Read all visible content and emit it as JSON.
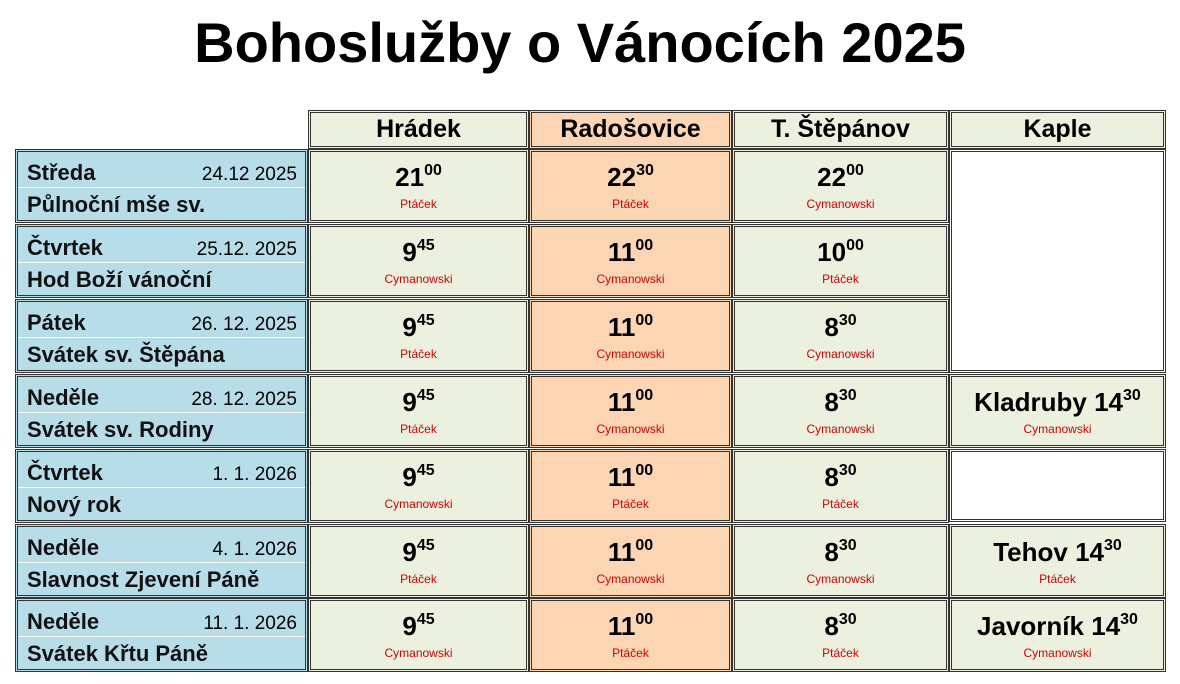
{
  "title": "Bohoslužby o Vánocích 2025",
  "header": [
    "Hrádek",
    "Radošovice",
    "T. Štěpánov",
    "Kaple"
  ],
  "rows": [
    {
      "day": "Středa",
      "date": "24.12 2025",
      "feast": "Půlnoční mše sv.",
      "times": [
        {
          "hour": "21",
          "minute": "00",
          "priest": "Ptáček"
        },
        {
          "hour": "22",
          "minute": "30",
          "priest": "Ptáček"
        },
        {
          "hour": "22",
          "minute": "00",
          "priest": "Cymanowski"
        }
      ]
    },
    {
      "day": "Čtvrtek",
      "date": "25.12. 2025",
      "feast": "Hod Boží vánoční",
      "times": [
        {
          "hour": "9",
          "minute": "45",
          "priest": "Cymanowski"
        },
        {
          "hour": "11",
          "minute": "00",
          "priest": "Cymanowski"
        },
        {
          "hour": "10",
          "minute": "00",
          "priest": "Ptáček"
        }
      ]
    },
    {
      "day": "Pátek",
      "date": "26. 12. 2025",
      "feast": "Svátek sv. Štěpána",
      "times": [
        {
          "hour": "9",
          "minute": "45",
          "priest": "Ptáček"
        },
        {
          "hour": "11",
          "minute": "00",
          "priest": "Cymanowski"
        },
        {
          "hour": "8",
          "minute": "30",
          "priest": "Cymanowski"
        }
      ]
    },
    {
      "day": "Neděle",
      "date": "28. 12. 2025",
      "feast": "Svátek sv. Rodiny",
      "times": [
        {
          "hour": "9",
          "minute": "45",
          "priest": "Ptáček"
        },
        {
          "hour": "11",
          "minute": "00",
          "priest": "Cymanowski"
        },
        {
          "hour": "8",
          "minute": "30",
          "priest": "Cymanowski"
        }
      ],
      "kaple": {
        "place": "Kladruby",
        "hour": "14",
        "minute": "30",
        "priest": "Cymanowski"
      }
    },
    {
      "day": "Čtvrtek",
      "date": "1. 1. 2026",
      "feast": "Nový rok",
      "times": [
        {
          "hour": "9",
          "minute": "45",
          "priest": "Cymanowski"
        },
        {
          "hour": "11",
          "minute": "00",
          "priest": "Ptáček"
        },
        {
          "hour": "8",
          "minute": "30",
          "priest": "Ptáček"
        }
      ]
    },
    {
      "day": "Neděle",
      "date": "4. 1. 2026",
      "feast": "Slavnost Zjevení Páně",
      "times": [
        {
          "hour": "9",
          "minute": "45",
          "priest": "Ptáček"
        },
        {
          "hour": "11",
          "minute": "00",
          "priest": "Cymanowski"
        },
        {
          "hour": "8",
          "minute": "30",
          "priest": "Cymanowski"
        }
      ],
      "kaple": {
        "place": "Tehov",
        "hour": "14",
        "minute": "30",
        "priest": "Ptáček"
      }
    },
    {
      "day": "Neděle",
      "date": "11. 1. 2026",
      "feast": "Svátek Křtu Páně",
      "times": [
        {
          "hour": "9",
          "minute": "45",
          "priest": "Cymanowski"
        },
        {
          "hour": "11",
          "minute": "00",
          "priest": "Ptáček"
        },
        {
          "hour": "8",
          "minute": "30",
          "priest": "Ptáček"
        }
      ],
      "kaple": {
        "place": "Javorník",
        "hour": "14",
        "minute": "30",
        "priest": "Cymanowski"
      }
    }
  ]
}
